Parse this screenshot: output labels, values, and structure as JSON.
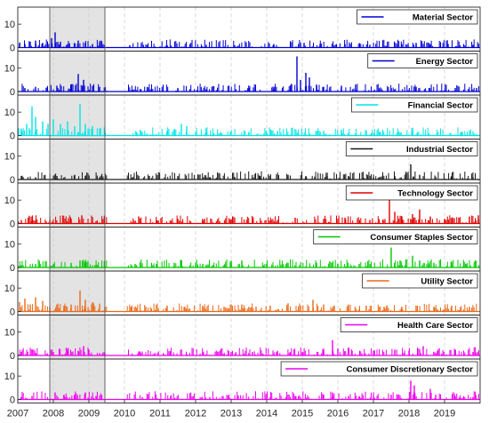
{
  "chart_data": {
    "type": "bar",
    "x_range": [
      2007,
      2020
    ],
    "x_ticks": [
      "2007",
      "2008",
      "2009",
      "2010",
      "2011",
      "2012",
      "2013",
      "2014",
      "2015",
      "2016",
      "2017",
      "2018",
      "2019"
    ],
    "y_ticks": [
      "0",
      "10"
    ],
    "ylim": [
      0,
      15
    ],
    "shaded_period": [
      2007.9,
      2009.45
    ],
    "grid": "vertical-dashed",
    "legend_position": "top-right",
    "panels": [
      {
        "name": "Material Sector",
        "color": "#0000d0",
        "events": [
          [
            2007.05,
            2
          ],
          [
            2007.2,
            1.5
          ],
          [
            2007.35,
            2.5
          ],
          [
            2007.5,
            3
          ],
          [
            2007.7,
            2
          ],
          [
            2007.95,
            4
          ],
          [
            2008.05,
            6.5
          ],
          [
            2008.2,
            2.5
          ],
          [
            2008.45,
            1.5
          ],
          [
            2008.7,
            3
          ],
          [
            2008.9,
            2
          ],
          [
            2009.1,
            1.5
          ],
          [
            2009.3,
            2
          ],
          [
            2010.15,
            1
          ],
          [
            2011.2,
            1
          ],
          [
            2012.3,
            1.2
          ],
          [
            2013.1,
            1
          ],
          [
            2014.2,
            1.5
          ],
          [
            2015.05,
            2
          ],
          [
            2015.5,
            1.5
          ],
          [
            2016.2,
            1.5
          ],
          [
            2016.9,
            1.2
          ],
          [
            2017.8,
            1.5
          ],
          [
            2018.2,
            2
          ],
          [
            2018.6,
            1.5
          ],
          [
            2019.1,
            1.5
          ],
          [
            2019.8,
            1.2
          ]
        ]
      },
      {
        "name": "Energy Sector",
        "color": "#0000d0",
        "events": [
          [
            2007.2,
            1.5
          ],
          [
            2007.5,
            2
          ],
          [
            2007.8,
            1.5
          ],
          [
            2008.1,
            2.5
          ],
          [
            2008.5,
            3
          ],
          [
            2008.7,
            7.5
          ],
          [
            2008.85,
            5
          ],
          [
            2009.1,
            2.5
          ],
          [
            2009.3,
            2
          ],
          [
            2011.5,
            1.5
          ],
          [
            2012.3,
            1
          ],
          [
            2013.5,
            1.5
          ],
          [
            2014.2,
            1
          ],
          [
            2014.7,
            3
          ],
          [
            2014.85,
            15
          ],
          [
            2014.95,
            5
          ],
          [
            2015.1,
            8
          ],
          [
            2015.2,
            6
          ],
          [
            2015.4,
            3
          ],
          [
            2015.6,
            2
          ],
          [
            2016.1,
            2.5
          ],
          [
            2016.5,
            3
          ],
          [
            2017.5,
            1.5
          ],
          [
            2018.2,
            2
          ],
          [
            2019.3,
            1.5
          ],
          [
            2019.9,
            1.5
          ]
        ]
      },
      {
        "name": "Financial Sector",
        "color": "#00e5e5",
        "events": [
          [
            2007.1,
            3
          ],
          [
            2007.25,
            5
          ],
          [
            2007.4,
            12.5
          ],
          [
            2007.5,
            8
          ],
          [
            2007.7,
            6
          ],
          [
            2007.85,
            5
          ],
          [
            2008.0,
            7
          ],
          [
            2008.2,
            5
          ],
          [
            2008.4,
            6
          ],
          [
            2008.6,
            4
          ],
          [
            2008.75,
            13.5
          ],
          [
            2008.9,
            5
          ],
          [
            2009.1,
            4
          ],
          [
            2009.3,
            3
          ],
          [
            2009.45,
            2
          ],
          [
            2010.5,
            1.5
          ],
          [
            2011.2,
            2
          ],
          [
            2011.6,
            5
          ],
          [
            2011.75,
            4
          ],
          [
            2012.3,
            1.5
          ],
          [
            2013.5,
            1.5
          ],
          [
            2014.3,
            1.5
          ],
          [
            2015.6,
            2
          ],
          [
            2016.1,
            2.5
          ],
          [
            2017.2,
            1.5
          ],
          [
            2018.1,
            2
          ],
          [
            2019.5,
            1.5
          ]
        ]
      },
      {
        "name": "Industrial Sector",
        "color": "#1a1a1a",
        "events": [
          [
            2007.1,
            1.5
          ],
          [
            2007.5,
            1
          ],
          [
            2008.1,
            1.5
          ],
          [
            2008.6,
            2
          ],
          [
            2008.9,
            1.5
          ],
          [
            2009.3,
            1
          ],
          [
            2010.7,
            1.5
          ],
          [
            2011.5,
            1.5
          ],
          [
            2012.4,
            1
          ],
          [
            2013.1,
            1
          ],
          [
            2013.8,
            1.5
          ],
          [
            2014.6,
            2
          ],
          [
            2015.1,
            1.5
          ],
          [
            2015.7,
            1.5
          ],
          [
            2016.3,
            1.5
          ],
          [
            2017.0,
            1
          ],
          [
            2017.6,
            1.5
          ],
          [
            2018.05,
            6.5
          ],
          [
            2018.3,
            2
          ],
          [
            2019.2,
            1.5
          ],
          [
            2019.8,
            1
          ]
        ]
      },
      {
        "name": "Technology Sector",
        "color": "#e00000",
        "events": [
          [
            2007.1,
            1.5
          ],
          [
            2007.4,
            3
          ],
          [
            2007.9,
            1.5
          ],
          [
            2008.5,
            2
          ],
          [
            2008.8,
            3.5
          ],
          [
            2009.2,
            1
          ],
          [
            2010.4,
            3
          ],
          [
            2010.9,
            1.5
          ],
          [
            2011.5,
            2
          ],
          [
            2012.2,
            1
          ],
          [
            2013.0,
            1.5
          ],
          [
            2013.6,
            2
          ],
          [
            2014.3,
            1.5
          ],
          [
            2014.8,
            2.5
          ],
          [
            2015.6,
            2
          ],
          [
            2016.2,
            2.5
          ],
          [
            2016.9,
            1.5
          ],
          [
            2017.45,
            10.5
          ],
          [
            2017.6,
            5
          ],
          [
            2017.8,
            3
          ],
          [
            2018.1,
            4
          ],
          [
            2018.3,
            6
          ],
          [
            2018.6,
            3
          ],
          [
            2019.0,
            2
          ],
          [
            2019.4,
            2.5
          ],
          [
            2019.7,
            3
          ],
          [
            2019.95,
            3.5
          ]
        ]
      },
      {
        "name": "Consumer Staples Sector",
        "color": "#00c800",
        "events": [
          [
            2007.1,
            1
          ],
          [
            2007.5,
            1.5
          ],
          [
            2008.0,
            1.5
          ],
          [
            2008.5,
            2
          ],
          [
            2008.75,
            3
          ],
          [
            2008.9,
            2
          ],
          [
            2009.2,
            1
          ],
          [
            2010.3,
            1.5
          ],
          [
            2010.9,
            1.5
          ],
          [
            2011.4,
            2
          ],
          [
            2011.6,
            3
          ],
          [
            2012.2,
            1.5
          ],
          [
            2013.0,
            2
          ],
          [
            2013.3,
            3
          ],
          [
            2014.0,
            1.5
          ],
          [
            2014.6,
            2
          ],
          [
            2015.4,
            2
          ],
          [
            2016.0,
            1.5
          ],
          [
            2016.6,
            1.5
          ],
          [
            2017.5,
            8.5
          ],
          [
            2017.75,
            3
          ],
          [
            2018.1,
            5
          ],
          [
            2018.3,
            3
          ],
          [
            2018.7,
            2
          ],
          [
            2019.2,
            2.5
          ],
          [
            2019.6,
            1.5
          ]
        ]
      },
      {
        "name": "Utility Sector",
        "color": "#e86a1a",
        "events": [
          [
            2007.05,
            4
          ],
          [
            2007.2,
            5.5
          ],
          [
            2007.35,
            3
          ],
          [
            2007.5,
            6
          ],
          [
            2007.7,
            4.5
          ],
          [
            2007.9,
            2
          ],
          [
            2008.1,
            3
          ],
          [
            2008.3,
            2.5
          ],
          [
            2008.5,
            3
          ],
          [
            2008.75,
            9
          ],
          [
            2008.9,
            5
          ],
          [
            2009.1,
            4
          ],
          [
            2009.3,
            3
          ],
          [
            2009.45,
            2
          ],
          [
            2010.2,
            2
          ],
          [
            2010.6,
            2
          ],
          [
            2011.2,
            2.5
          ],
          [
            2011.7,
            2
          ],
          [
            2012.2,
            2.5
          ],
          [
            2012.8,
            2
          ],
          [
            2013.3,
            3
          ],
          [
            2013.7,
            2
          ],
          [
            2014.1,
            2.5
          ],
          [
            2014.6,
            3.5
          ],
          [
            2015.3,
            5
          ],
          [
            2015.6,
            3
          ],
          [
            2015.9,
            2.5
          ],
          [
            2016.3,
            3
          ],
          [
            2016.8,
            2.5
          ],
          [
            2017.3,
            2
          ],
          [
            2017.8,
            2
          ],
          [
            2018.2,
            2.5
          ],
          [
            2018.7,
            2
          ],
          [
            2019.2,
            2.5
          ],
          [
            2019.7,
            2
          ]
        ]
      },
      {
        "name": "Health Care Sector",
        "color": "#ee00ee",
        "events": [
          [
            2007.1,
            1.5
          ],
          [
            2007.5,
            1
          ],
          [
            2008.0,
            1.5
          ],
          [
            2008.4,
            2
          ],
          [
            2008.7,
            2
          ],
          [
            2008.85,
            4
          ],
          [
            2009.0,
            2.5
          ],
          [
            2009.3,
            1
          ],
          [
            2010.4,
            1.5
          ],
          [
            2011.3,
            1.5
          ],
          [
            2012.2,
            1
          ],
          [
            2013.0,
            1.5
          ],
          [
            2013.6,
            1.5
          ],
          [
            2014.3,
            2
          ],
          [
            2015.0,
            1.5
          ],
          [
            2015.6,
            2
          ],
          [
            2015.85,
            6.5
          ],
          [
            2016.0,
            3
          ],
          [
            2016.4,
            2
          ],
          [
            2017.0,
            2
          ],
          [
            2017.6,
            2.5
          ],
          [
            2018.0,
            2
          ],
          [
            2018.4,
            4
          ],
          [
            2018.8,
            2
          ],
          [
            2019.3,
            2.5
          ],
          [
            2019.8,
            1.5
          ]
        ]
      },
      {
        "name": "Consumer Discretionary Sector",
        "color": "#ee00ee",
        "events": [
          [
            2007.1,
            1
          ],
          [
            2007.4,
            1.5
          ],
          [
            2008.05,
            3
          ],
          [
            2008.3,
            2
          ],
          [
            2008.6,
            2
          ],
          [
            2008.9,
            3
          ],
          [
            2009.2,
            1.5
          ],
          [
            2010.5,
            1
          ],
          [
            2011.3,
            1.5
          ],
          [
            2012.4,
            1
          ],
          [
            2013.2,
            1.5
          ],
          [
            2014.1,
            1
          ],
          [
            2014.8,
            1.5
          ],
          [
            2015.6,
            2
          ],
          [
            2015.85,
            3
          ],
          [
            2016.3,
            1.5
          ],
          [
            2017.0,
            1.5
          ],
          [
            2017.5,
            2
          ],
          [
            2018.05,
            8
          ],
          [
            2018.15,
            6
          ],
          [
            2018.6,
            4.5
          ],
          [
            2018.75,
            2
          ],
          [
            2019.3,
            1.5
          ],
          [
            2019.8,
            1
          ]
        ]
      }
    ]
  }
}
